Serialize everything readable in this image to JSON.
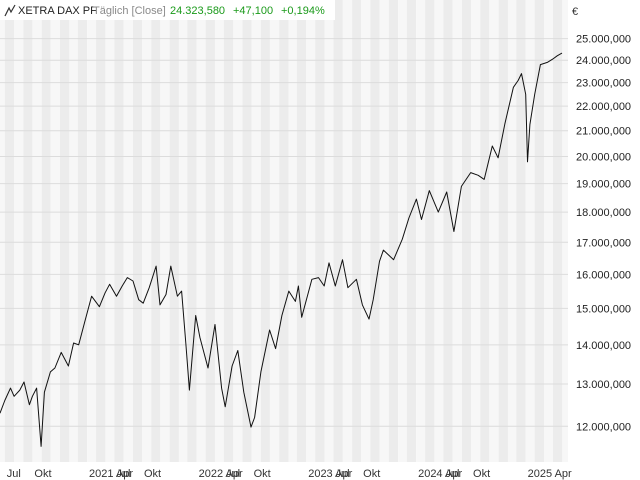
{
  "header": {
    "instrument": "XETRA DAX PF",
    "period": "Täglich [Close]",
    "last": "24.323,580",
    "change": "+47,100",
    "change_pct": "+0,194%",
    "icon": "line-chart-icon"
  },
  "colors": {
    "line": "#111111",
    "positive": "#1a9a1a",
    "muted": "#8a8a8a",
    "band_light": "#f7f7f7",
    "band_dark": "#ececec"
  },
  "chart_data": {
    "type": "line",
    "title": "",
    "xlabel": "",
    "ylabel": "€",
    "y_scale": "log",
    "ylim": [
      11300,
      25800
    ],
    "xlim": [
      "2020-06-15",
      "2025-08-20"
    ],
    "grid": true,
    "y_ticks": [
      12000,
      13000,
      14000,
      15000,
      16000,
      17000,
      18000,
      19000,
      20000,
      21000,
      22000,
      23000,
      24000,
      25000
    ],
    "y_tick_labels": [
      "12.000,000",
      "13.000,000",
      "14.000,000",
      "15.000,000",
      "16.000,000",
      "17.000,000",
      "18.000,000",
      "19.000,000",
      "20.000,000",
      "21.000,000",
      "22.000,000",
      "23.000,000",
      "24.000,000",
      "25.000,000"
    ],
    "x_ticks": [
      {
        "date": "2020-07-01",
        "label": "Jul"
      },
      {
        "date": "2020-10-01",
        "label": "Okt"
      },
      {
        "date": "2021-04-01",
        "label": "2021 Apr"
      },
      {
        "date": "2021-07-01",
        "label": "Jul"
      },
      {
        "date": "2021-10-01",
        "label": "Okt"
      },
      {
        "date": "2022-04-01",
        "label": "2022 Apr"
      },
      {
        "date": "2022-07-01",
        "label": "Jul"
      },
      {
        "date": "2022-10-01",
        "label": "Okt"
      },
      {
        "date": "2023-04-01",
        "label": "2023 Apr"
      },
      {
        "date": "2023-07-01",
        "label": "Jul"
      },
      {
        "date": "2023-10-01",
        "label": "Okt"
      },
      {
        "date": "2024-04-01",
        "label": "2024 Apr"
      },
      {
        "date": "2024-07-01",
        "label": "Jul"
      },
      {
        "date": "2024-10-01",
        "label": "Okt"
      },
      {
        "date": "2025-04-01",
        "label": "2025 Apr"
      }
    ],
    "series": [
      {
        "points": [
          [
            "2020-06-15",
            12300
          ],
          [
            "2020-07-01",
            12600
          ],
          [
            "2020-07-20",
            12900
          ],
          [
            "2020-08-01",
            12700
          ],
          [
            "2020-08-20",
            12850
          ],
          [
            "2020-09-03",
            13050
          ],
          [
            "2020-09-21",
            12500
          ],
          [
            "2020-10-01",
            12700
          ],
          [
            "2020-10-15",
            12900
          ],
          [
            "2020-10-30",
            11550
          ],
          [
            "2020-11-10",
            12800
          ],
          [
            "2020-11-30",
            13300
          ],
          [
            "2020-12-15",
            13400
          ],
          [
            "2021-01-05",
            13800
          ],
          [
            "2021-01-29",
            13450
          ],
          [
            "2021-02-15",
            14050
          ],
          [
            "2021-03-04",
            14000
          ],
          [
            "2021-03-25",
            14650
          ],
          [
            "2021-04-16",
            15350
          ],
          [
            "2021-05-12",
            15050
          ],
          [
            "2021-05-31",
            15450
          ],
          [
            "2021-06-15",
            15700
          ],
          [
            "2021-07-08",
            15350
          ],
          [
            "2021-07-27",
            15650
          ],
          [
            "2021-08-13",
            15900
          ],
          [
            "2021-09-01",
            15800
          ],
          [
            "2021-09-20",
            15250
          ],
          [
            "2021-10-05",
            15150
          ],
          [
            "2021-10-25",
            15600
          ],
          [
            "2021-11-17",
            16250
          ],
          [
            "2021-11-30",
            15100
          ],
          [
            "2021-12-20",
            15400
          ],
          [
            "2022-01-05",
            16250
          ],
          [
            "2022-01-27",
            15350
          ],
          [
            "2022-02-10",
            15500
          ],
          [
            "2022-02-24",
            14050
          ],
          [
            "2022-03-08",
            12850
          ],
          [
            "2022-03-29",
            14800
          ],
          [
            "2022-04-12",
            14200
          ],
          [
            "2022-05-09",
            13400
          ],
          [
            "2022-06-01",
            14550
          ],
          [
            "2022-06-23",
            12900
          ],
          [
            "2022-07-05",
            12450
          ],
          [
            "2022-07-28",
            13450
          ],
          [
            "2022-08-16",
            13850
          ],
          [
            "2022-09-05",
            12800
          ],
          [
            "2022-09-29",
            11980
          ],
          [
            "2022-10-11",
            12200
          ],
          [
            "2022-11-01",
            13300
          ],
          [
            "2022-11-30",
            14400
          ],
          [
            "2022-12-20",
            13900
          ],
          [
            "2023-01-10",
            14800
          ],
          [
            "2023-02-02",
            15500
          ],
          [
            "2023-02-24",
            15200
          ],
          [
            "2023-03-06",
            15650
          ],
          [
            "2023-03-17",
            14750
          ],
          [
            "2023-04-20",
            15850
          ],
          [
            "2023-05-12",
            15900
          ],
          [
            "2023-05-31",
            15650
          ],
          [
            "2023-06-16",
            16350
          ],
          [
            "2023-07-07",
            15650
          ],
          [
            "2023-07-31",
            16450
          ],
          [
            "2023-08-18",
            15600
          ],
          [
            "2023-09-15",
            15850
          ],
          [
            "2023-10-05",
            15100
          ],
          [
            "2023-10-27",
            14700
          ],
          [
            "2023-11-10",
            15250
          ],
          [
            "2023-12-01",
            16400
          ],
          [
            "2023-12-14",
            16750
          ],
          [
            "2024-01-17",
            16450
          ],
          [
            "2024-02-15",
            17100
          ],
          [
            "2024-03-08",
            17800
          ],
          [
            "2024-04-02",
            18450
          ],
          [
            "2024-04-19",
            17750
          ],
          [
            "2024-05-15",
            18750
          ],
          [
            "2024-06-14",
            18000
          ],
          [
            "2024-07-12",
            18700
          ],
          [
            "2024-08-05",
            17350
          ],
          [
            "2024-08-30",
            18900
          ],
          [
            "2024-09-30",
            19400
          ],
          [
            "2024-10-25",
            19300
          ],
          [
            "2024-11-14",
            19150
          ],
          [
            "2024-12-11",
            20400
          ],
          [
            "2024-12-30",
            19950
          ],
          [
            "2025-01-22",
            21300
          ],
          [
            "2025-02-19",
            22800
          ],
          [
            "2025-03-07",
            23100
          ],
          [
            "2025-03-18",
            23400
          ],
          [
            "2025-04-01",
            22500
          ],
          [
            "2025-04-07",
            19800
          ],
          [
            "2025-04-15",
            21250
          ],
          [
            "2025-05-01",
            22500
          ],
          [
            "2025-05-20",
            23800
          ],
          [
            "2025-06-12",
            23900
          ],
          [
            "2025-06-30",
            24050
          ],
          [
            "2025-07-15",
            24200
          ],
          [
            "2025-07-31",
            24323.58
          ]
        ]
      }
    ]
  }
}
